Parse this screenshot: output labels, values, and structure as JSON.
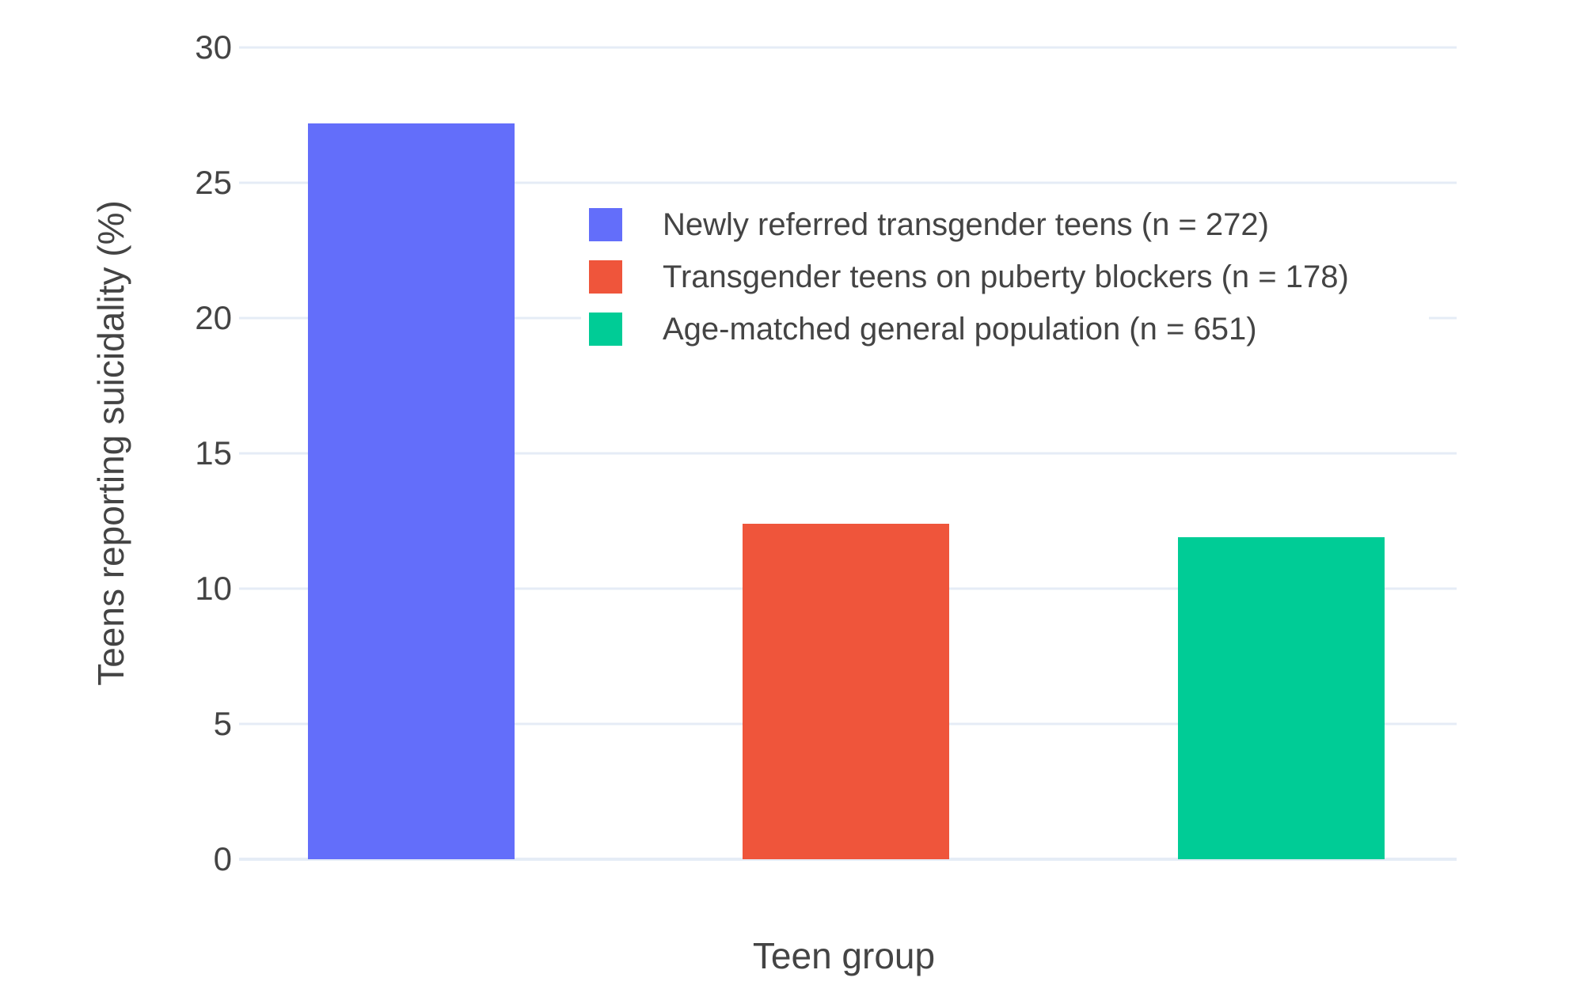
{
  "chart_data": {
    "type": "bar",
    "title": "",
    "xlabel": "Teen group",
    "ylabel": "Teens reporting suicidality (%)",
    "ylim": [
      0,
      30
    ],
    "yticks": [
      0,
      5,
      10,
      15,
      20,
      25,
      30
    ],
    "grid": true,
    "legend_position": "inside-top-center",
    "series": [
      {
        "name": "Newly referred transgender teens (n = 272)",
        "value": 27.2,
        "color": "#636EFA"
      },
      {
        "name": "Transgender teens on puberty blockers (n = 178)",
        "value": 12.4,
        "color": "#EF553B"
      },
      {
        "name": "Age-matched general population (n = 651)",
        "value": 11.9,
        "color": "#00CC96"
      }
    ]
  },
  "colors": {
    "background": "#FFFFFF",
    "gridline": "#E5ECF6",
    "text": "#444444"
  }
}
